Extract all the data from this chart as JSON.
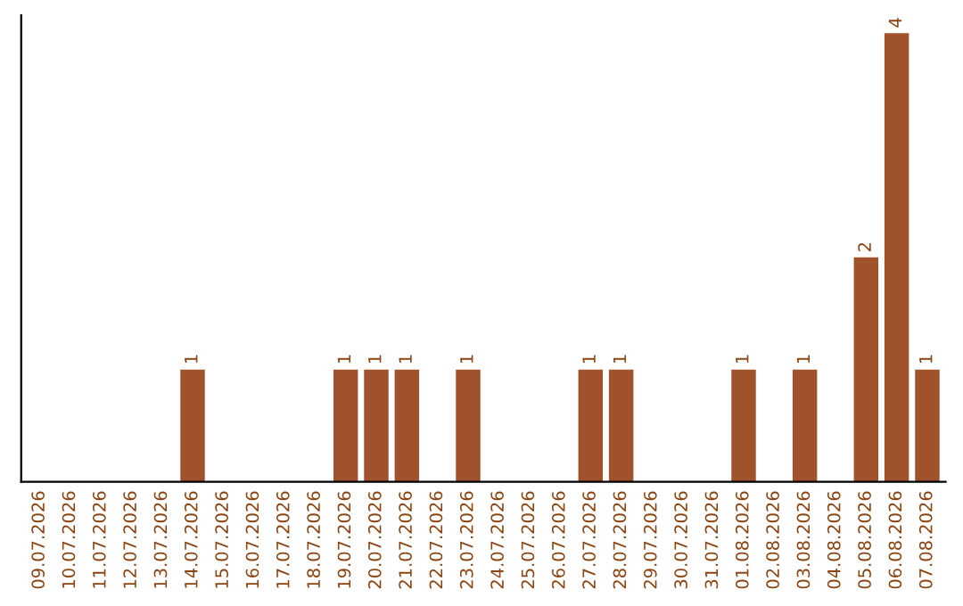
{
  "chart_data": {
    "type": "bar",
    "categories": [
      "09.07.2026",
      "10.07.2026",
      "11.07.2026",
      "12.07.2026",
      "13.07.2026",
      "14.07.2026",
      "15.07.2026",
      "16.07.2026",
      "17.07.2026",
      "18.07.2026",
      "19.07.2026",
      "20.07.2026",
      "21.07.2026",
      "22.07.2026",
      "23.07.2026",
      "24.07.2026",
      "25.07.2026",
      "26.07.2026",
      "27.07.2026",
      "28.07.2026",
      "29.07.2026",
      "30.07.2026",
      "31.07.2026",
      "01.08.2026",
      "02.08.2026",
      "03.08.2026",
      "04.08.2026",
      "05.08.2026",
      "06.08.2026",
      "07.08.2026"
    ],
    "values": [
      0,
      0,
      0,
      0,
      0,
      1,
      0,
      0,
      0,
      0,
      1,
      1,
      1,
      0,
      1,
      0,
      0,
      0,
      1,
      1,
      0,
      0,
      0,
      1,
      0,
      1,
      0,
      2,
      4,
      1
    ],
    "value_labels": [
      null,
      null,
      null,
      null,
      null,
      "1",
      null,
      null,
      null,
      null,
      "1",
      "1",
      "1",
      null,
      "1",
      null,
      null,
      null,
      "1",
      "1",
      null,
      null,
      null,
      "1",
      null,
      "1",
      null,
      "2",
      "4",
      "1"
    ],
    "color": "#a0522d",
    "relative": false,
    "grid": false,
    "legend": false
  }
}
